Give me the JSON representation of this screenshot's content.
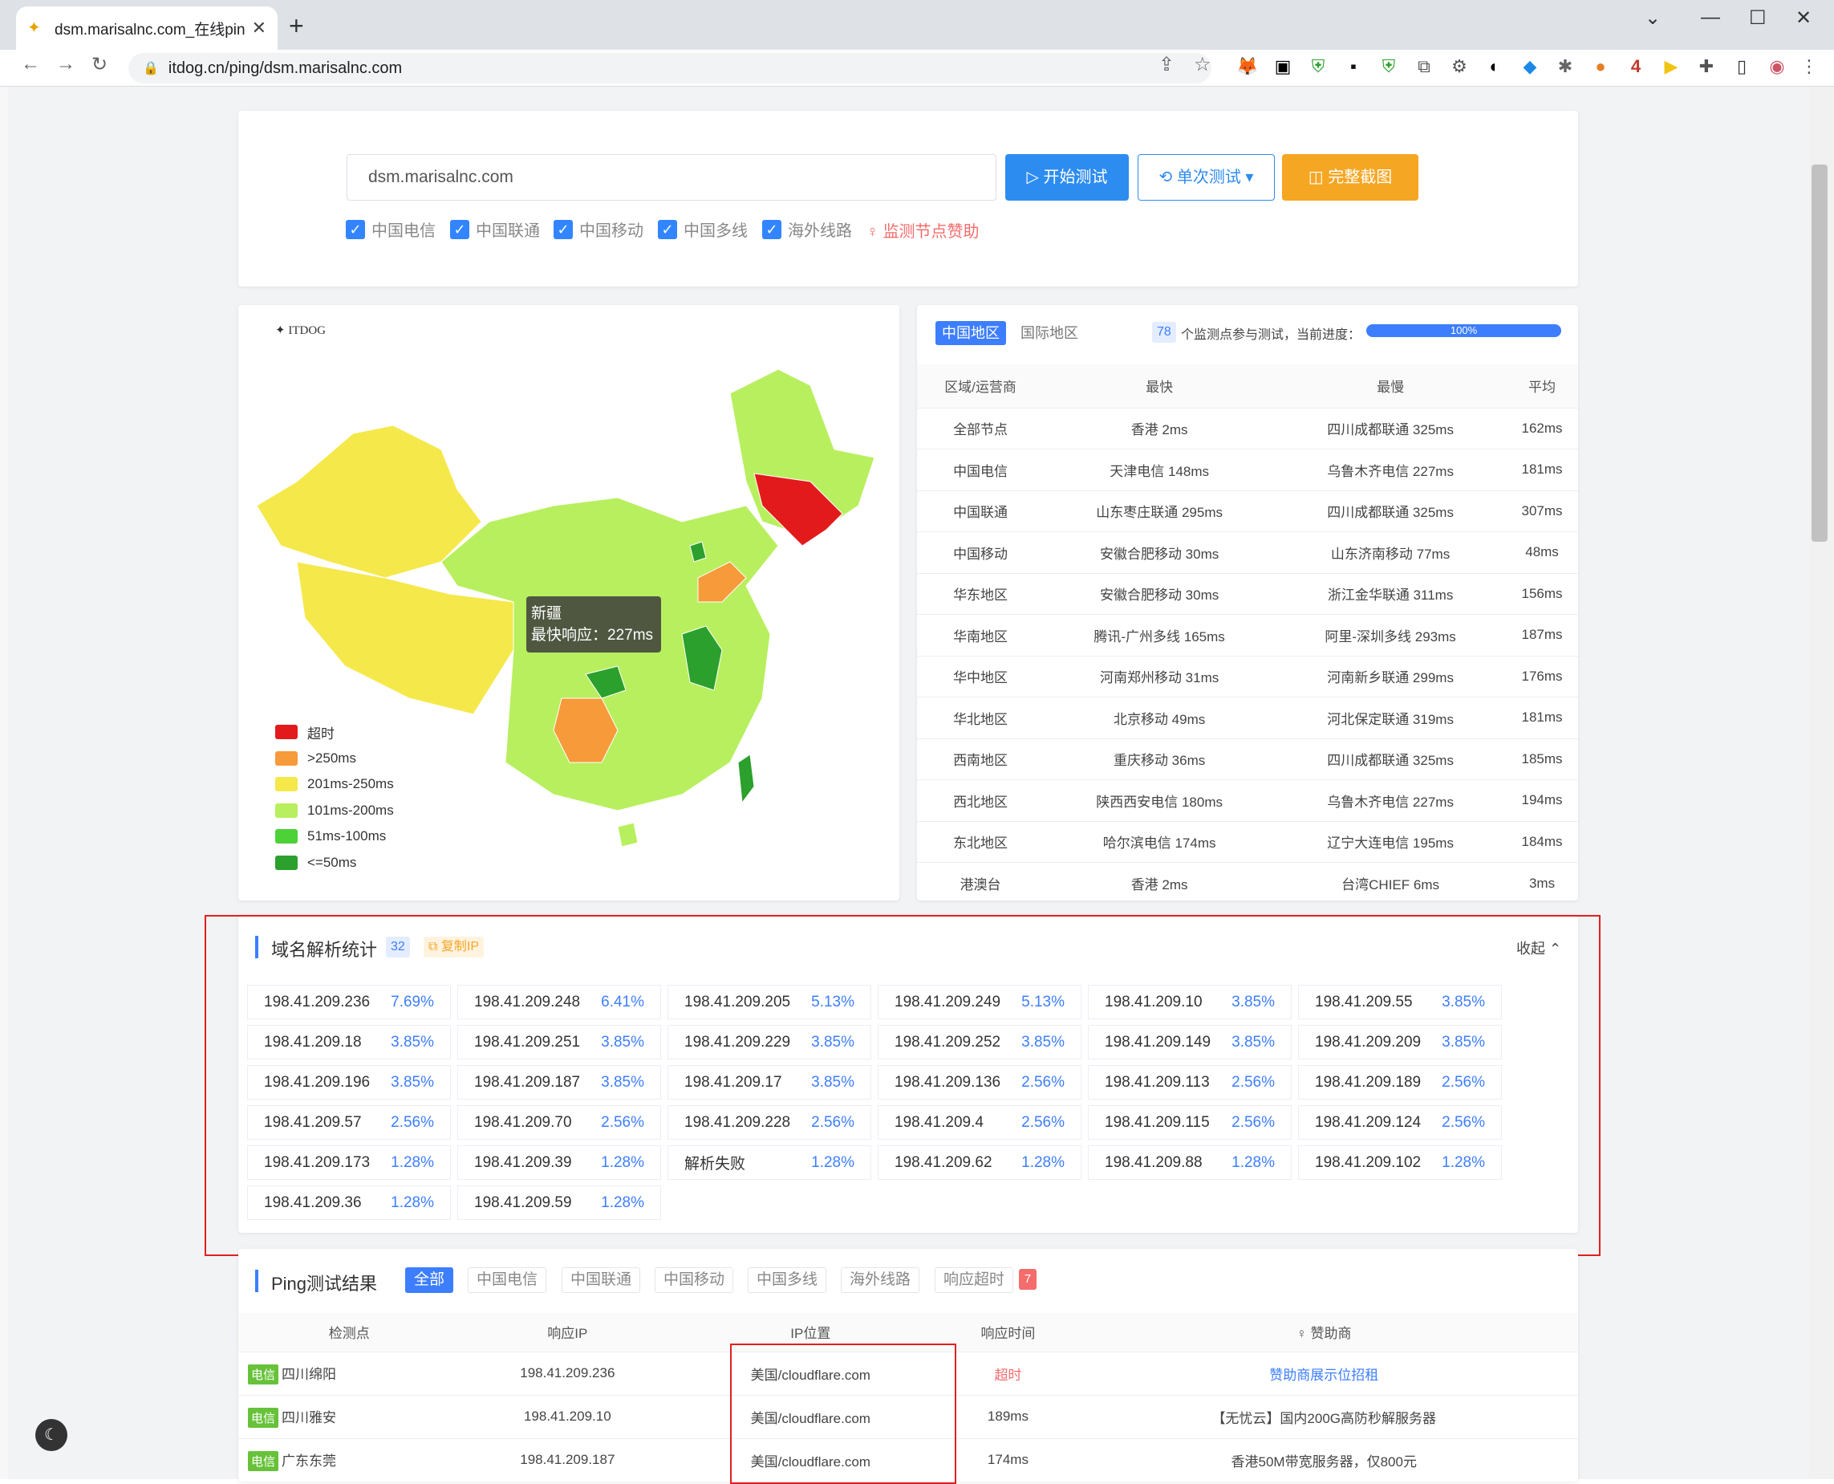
{
  "browser": {
    "tab_title": "dsm.marisalnc.com_在线ping_",
    "url": "itdog.cn/ping/dsm.marisalnc.com"
  },
  "search": {
    "value": "dsm.marisalnc.com",
    "start": "开始测试",
    "single": "单次测试",
    "screenshot": "完整截图",
    "checks": [
      "中国电信",
      "中国联通",
      "中国移动",
      "中国多线",
      "海外线路"
    ],
    "sponsor": "监测节点赞助"
  },
  "map": {
    "logo": "ITDOG",
    "tooltip_region": "新疆",
    "tooltip_text": "最快响应：227ms",
    "legend": [
      {
        "label": "超时",
        "color": "#e31a1c"
      },
      {
        "label": ">250ms",
        "color": "#f79a3a"
      },
      {
        "label": "201ms-250ms",
        "color": "#f5e84a"
      },
      {
        "label": "101ms-200ms",
        "color": "#b8ef5f"
      },
      {
        "label": "51ms-100ms",
        "color": "#4cd137"
      },
      {
        "label": "<=50ms",
        "color": "#2ca02c"
      }
    ]
  },
  "stats": {
    "tab_cn": "中国地区",
    "tab_intl": "国际地区",
    "node_count": "78",
    "node_text": "个监测点参与测试，当前进度：",
    "progress": "100%",
    "headers": [
      "区域/运营商",
      "最快",
      "最慢",
      "平均"
    ],
    "rows": [
      [
        "全部节点",
        "香港 2ms",
        "四川成都联通 325ms",
        "162ms"
      ],
      [
        "中国电信",
        "天津电信 148ms",
        "乌鲁木齐电信 227ms",
        "181ms"
      ],
      [
        "中国联通",
        "山东枣庄联通 295ms",
        "四川成都联通 325ms",
        "307ms"
      ],
      [
        "中国移动",
        "安徽合肥移动 30ms",
        "山东济南移动 77ms",
        "48ms"
      ],
      [
        "华东地区",
        "安徽合肥移动 30ms",
        "浙江金华联通 311ms",
        "156ms"
      ],
      [
        "华南地区",
        "腾讯-广州多线 165ms",
        "阿里-深圳多线 293ms",
        "187ms"
      ],
      [
        "华中地区",
        "河南郑州移动 31ms",
        "河南新乡联通 299ms",
        "176ms"
      ],
      [
        "华北地区",
        "北京移动 49ms",
        "河北保定联通 319ms",
        "181ms"
      ],
      [
        "西南地区",
        "重庆移动 36ms",
        "四川成都联通 325ms",
        "185ms"
      ],
      [
        "西北地区",
        "陕西西安电信 180ms",
        "乌鲁木齐电信 227ms",
        "194ms"
      ],
      [
        "东北地区",
        "哈尔滨电信 174ms",
        "辽宁大连电信 195ms",
        "184ms"
      ],
      [
        "港澳台",
        "香港 2ms",
        "台湾CHIEF 6ms",
        "3ms"
      ]
    ]
  },
  "resolve": {
    "title": "域名解析统计",
    "count": "32",
    "copy": "复制IP",
    "collapse": "收起",
    "items": [
      [
        "198.41.209.236",
        "7.69%"
      ],
      [
        "198.41.209.248",
        "6.41%"
      ],
      [
        "198.41.209.205",
        "5.13%"
      ],
      [
        "198.41.209.249",
        "5.13%"
      ],
      [
        "198.41.209.10",
        "3.85%"
      ],
      [
        "198.41.209.55",
        "3.85%"
      ],
      [
        "198.41.209.18",
        "3.85%"
      ],
      [
        "198.41.209.251",
        "3.85%"
      ],
      [
        "198.41.209.229",
        "3.85%"
      ],
      [
        "198.41.209.252",
        "3.85%"
      ],
      [
        "198.41.209.149",
        "3.85%"
      ],
      [
        "198.41.209.209",
        "3.85%"
      ],
      [
        "198.41.209.196",
        "3.85%"
      ],
      [
        "198.41.209.187",
        "3.85%"
      ],
      [
        "198.41.209.17",
        "3.85%"
      ],
      [
        "198.41.209.136",
        "2.56%"
      ],
      [
        "198.41.209.113",
        "2.56%"
      ],
      [
        "198.41.209.189",
        "2.56%"
      ],
      [
        "198.41.209.57",
        "2.56%"
      ],
      [
        "198.41.209.70",
        "2.56%"
      ],
      [
        "198.41.209.228",
        "2.56%"
      ],
      [
        "198.41.209.4",
        "2.56%"
      ],
      [
        "198.41.209.115",
        "2.56%"
      ],
      [
        "198.41.209.124",
        "2.56%"
      ],
      [
        "198.41.209.173",
        "1.28%"
      ],
      [
        "198.41.209.39",
        "1.28%"
      ],
      [
        "解析失败",
        "1.28%"
      ],
      [
        "198.41.209.62",
        "1.28%"
      ],
      [
        "198.41.209.88",
        "1.28%"
      ],
      [
        "198.41.209.102",
        "1.28%"
      ],
      [
        "198.41.209.36",
        "1.28%"
      ],
      [
        "198.41.209.59",
        "1.28%"
      ]
    ]
  },
  "ping": {
    "title": "Ping测试结果",
    "tabs": [
      "全部",
      "中国电信",
      "中国联通",
      "中国移动",
      "中国多线",
      "海外线路",
      "响应超时"
    ],
    "timeout_count": "7",
    "headers": [
      "检测点",
      "响应IP",
      "IP位置",
      "响应时间",
      "赞助商"
    ],
    "rows": [
      [
        "电信",
        "四川绵阳",
        "198.41.209.236",
        "美国/cloudflare.com",
        "超时",
        "赞助商展示位招租"
      ],
      [
        "电信",
        "四川雅安",
        "198.41.209.10",
        "美国/cloudflare.com",
        "189ms",
        "【无忧云】国内200G高防秒解服务器"
      ],
      [
        "电信",
        "广东东莞",
        "198.41.209.187",
        "美国/cloudflare.com",
        "174ms",
        "香港50M带宽服务器，仅800元"
      ]
    ]
  }
}
